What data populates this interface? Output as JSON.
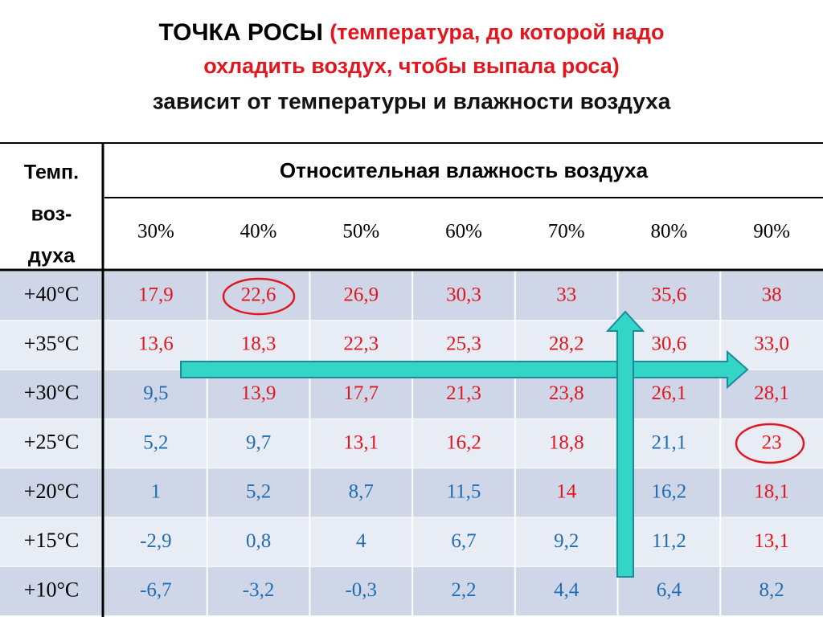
{
  "title": {
    "main": "ТОЧКА РОСЫ",
    "note": [
      "(температура, до которой надо",
      "охладить воздух, чтобы выпала роса)"
    ],
    "subtitle": "зависит от температуры и влажности воздуха"
  },
  "table": {
    "corner": [
      "Темп.",
      "воз-",
      "духа"
    ],
    "group_header": "Относительная влажность воздуха",
    "columns": [
      "30%",
      "40%",
      "50%",
      "60%",
      "70%",
      "80%",
      "90%"
    ],
    "rows": [
      {
        "label": "+40°C",
        "values": [
          "17,9",
          "22,6",
          "26,9",
          "30,3",
          "33",
          "35,6",
          "38"
        ],
        "colors": [
          "#e3161f",
          "#e3161f",
          "#e3161f",
          "#e3161f",
          "#e3161f",
          "#e3161f",
          "#e3161f"
        ]
      },
      {
        "label": "+35°C",
        "values": [
          "13,6",
          "18,3",
          "22,3",
          "25,3",
          "28,2",
          "30,6",
          "33,0"
        ],
        "colors": [
          "#e3161f",
          "#e3161f",
          "#e3161f",
          "#e3161f",
          "#e3161f",
          "#e3161f",
          "#e3161f"
        ]
      },
      {
        "label": "+30°C",
        "values": [
          "9,5",
          "13,9",
          "17,7",
          "21,3",
          "23,8",
          "26,1",
          "28,1"
        ],
        "colors": [
          "#1f6db3",
          "#e3161f",
          "#e3161f",
          "#e3161f",
          "#e3161f",
          "#e3161f",
          "#e3161f"
        ]
      },
      {
        "label": "+25°C",
        "values": [
          "5,2",
          "9,7",
          "13,1",
          "16,2",
          "18,8",
          "21,1",
          "23"
        ],
        "colors": [
          "#1f6db3",
          "#1f6db3",
          "#e3161f",
          "#e3161f",
          "#e3161f",
          "#1f6db3",
          "#e3161f"
        ]
      },
      {
        "label": "+20°C",
        "values": [
          "1",
          "5,2",
          "8,7",
          "11,5",
          "14",
          "16,2",
          "18,1"
        ],
        "colors": [
          "#1f6db3",
          "#1f6db3",
          "#1f6db3",
          "#1f6db3",
          "#e3161f",
          "#1f6db3",
          "#e3161f"
        ]
      },
      {
        "label": "+15°C",
        "values": [
          "-2,9",
          "0,8",
          "4",
          "6,7",
          "9,2",
          "11,2",
          "13,1"
        ],
        "colors": [
          "#1f6db3",
          "#1f6db3",
          "#1f6db3",
          "#1f6db3",
          "#1f6db3",
          "#1f6db3",
          "#e3161f"
        ]
      },
      {
        "label": "+10°C",
        "values": [
          "-6,7",
          "-3,2",
          "-0,3",
          "2,2",
          "4,4",
          "6,4",
          "8,2"
        ],
        "colors": [
          "#1f6db3",
          "#1f6db3",
          "#1f6db3",
          "#1f6db3",
          "#1f6db3",
          "#1f6db3",
          "#1f6db3"
        ]
      }
    ]
  }
}
